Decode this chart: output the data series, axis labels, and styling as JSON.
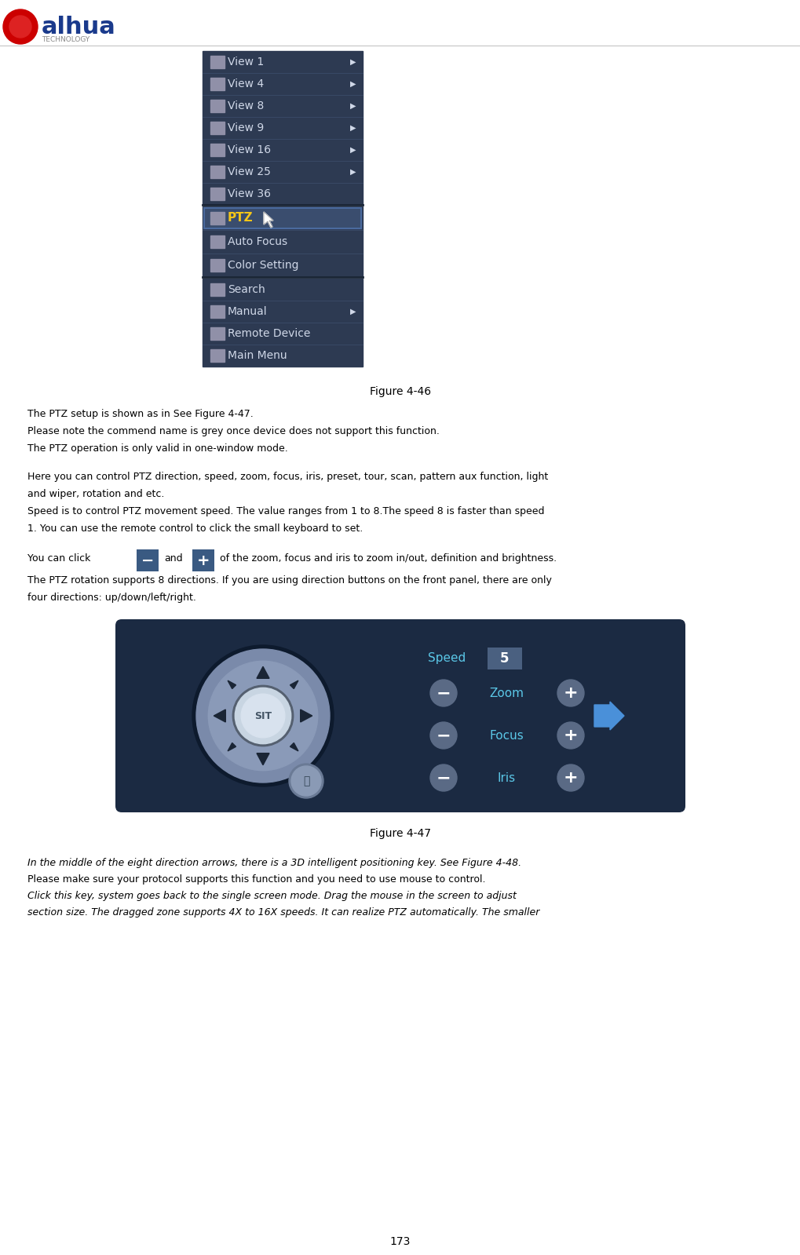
{
  "page_number": "173",
  "figure1_caption": "Figure 4-46",
  "figure2_caption": "Figure 4-47",
  "bg_color": "#ffffff",
  "menu_bg_color": "#2d3a52",
  "menu_highlight_color": "#3a4d6e",
  "menu_border_color": "#4a6a9e",
  "menu_text_color": "#d0d8e8",
  "ptz_text_color": "#f5c518",
  "menu_items": [
    {
      "label": "View 1",
      "arrow": true
    },
    {
      "label": "View 4",
      "arrow": true
    },
    {
      "label": "View 8",
      "arrow": true
    },
    {
      "label": "View 9",
      "arrow": true
    },
    {
      "label": "View 16",
      "arrow": true
    },
    {
      "label": "View 25",
      "arrow": true
    },
    {
      "label": "View 36",
      "arrow": false
    }
  ],
  "ptz_item": {
    "label": "PTZ",
    "highlighted": true
  },
  "menu_items2": [
    {
      "label": "Auto Focus",
      "arrow": false
    },
    {
      "label": "Color Setting",
      "arrow": false
    }
  ],
  "menu_items3": [
    {
      "label": "Search",
      "arrow": false
    },
    {
      "label": "Manual",
      "arrow": true
    },
    {
      "label": "Remote Device",
      "arrow": false
    },
    {
      "label": "Main Menu",
      "arrow": false
    }
  ],
  "ptz_panel_bg": "#1b2a42",
  "speed_label_color": "#5bc8e8",
  "zoom_label_color": "#5bc8e8",
  "focus_label_color": "#5bc8e8",
  "iris_label_color": "#5bc8e8",
  "speed_box_color": "#4a6080",
  "speed_value": "5",
  "arrow_color": "#4a90d9",
  "btn_color": "#5a6a85",
  "sep_color": "#1a2535",
  "item_sep_color": "#3d4f6e",
  "logo_text_color": "#1a3a8c",
  "logo_sub_color": "#888888",
  "fs_menu": 10,
  "fs_text": 9,
  "fs_caption": 10,
  "fs_pagenum": 10
}
